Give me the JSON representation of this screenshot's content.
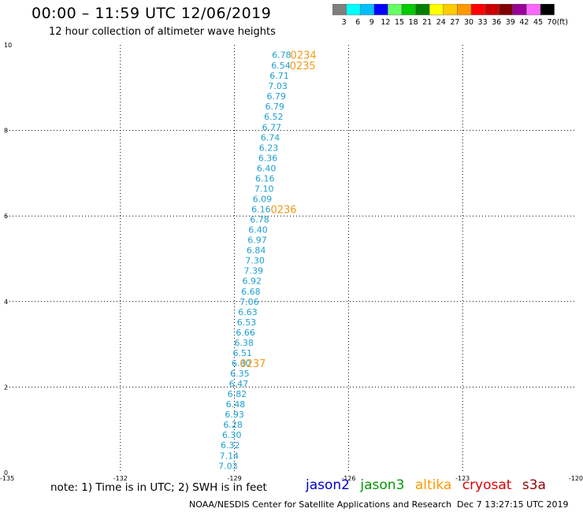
{
  "header": {
    "title": "00:00 – 11:59 UTC 12/06/2019",
    "subtitle": "12 hour collection of altimeter wave heights"
  },
  "colorbar": {
    "labels": [
      "3",
      "6",
      "9",
      "12",
      "15",
      "18",
      "21",
      "24",
      "27",
      "30",
      "33",
      "36",
      "39",
      "42",
      "45",
      "70"
    ],
    "unit": "(ft)",
    "colors": [
      "#7f7f7f",
      "#00ffff",
      "#00bfff",
      "#0000ff",
      "#66ff66",
      "#00cc00",
      "#008000",
      "#ffff00",
      "#ffcc00",
      "#ff9900",
      "#ff0000",
      "#cc0000",
      "#800000",
      "#990099",
      "#ff66ff",
      "#000000"
    ]
  },
  "chart_data": {
    "type": "scatter",
    "xlim": [
      -135,
      -120
    ],
    "ylim": [
      0,
      10
    ],
    "x_ticks": [
      "-135",
      "-132",
      "-129",
      "-126",
      "-123",
      "-120"
    ],
    "x_tick_values": [
      -135,
      -132,
      -129,
      -126,
      -123,
      -120
    ],
    "y_ticks": [
      "0",
      "2",
      "4",
      "6",
      "8",
      "10"
    ],
    "y_tick_values": [
      0,
      2,
      4,
      6,
      8,
      10
    ],
    "grid": true,
    "point_color": "#1e9fd0",
    "time_color": "#f09a18",
    "points": [
      {
        "x": -127.76,
        "y": 9.77,
        "value": "6.78"
      },
      {
        "x": -127.78,
        "y": 9.52,
        "value": "6.54"
      },
      {
        "x": -127.82,
        "y": 9.28,
        "value": "6.71"
      },
      {
        "x": -127.86,
        "y": 9.04,
        "value": "7.03"
      },
      {
        "x": -127.9,
        "y": 8.8,
        "value": "6.79"
      },
      {
        "x": -127.94,
        "y": 8.56,
        "value": "6.79"
      },
      {
        "x": -127.97,
        "y": 8.32,
        "value": "6.52"
      },
      {
        "x": -128.02,
        "y": 8.08,
        "value": "6.77"
      },
      {
        "x": -128.06,
        "y": 7.84,
        "value": "6.74"
      },
      {
        "x": -128.1,
        "y": 7.6,
        "value": "6.23"
      },
      {
        "x": -128.12,
        "y": 7.36,
        "value": "6.36"
      },
      {
        "x": -128.16,
        "y": 7.12,
        "value": "6.40"
      },
      {
        "x": -128.2,
        "y": 6.88,
        "value": "6.16"
      },
      {
        "x": -128.22,
        "y": 6.64,
        "value": "7.10"
      },
      {
        "x": -128.27,
        "y": 6.4,
        "value": "6.09"
      },
      {
        "x": -128.3,
        "y": 6.16,
        "value": "6.16"
      },
      {
        "x": -128.34,
        "y": 5.92,
        "value": "6.78"
      },
      {
        "x": -128.38,
        "y": 5.68,
        "value": "6.40"
      },
      {
        "x": -128.4,
        "y": 5.44,
        "value": "6.97"
      },
      {
        "x": -128.43,
        "y": 5.2,
        "value": "6.84"
      },
      {
        "x": -128.46,
        "y": 4.96,
        "value": "7.30"
      },
      {
        "x": -128.5,
        "y": 4.72,
        "value": "7.39"
      },
      {
        "x": -128.54,
        "y": 4.48,
        "value": "6.92"
      },
      {
        "x": -128.57,
        "y": 4.24,
        "value": "6.68"
      },
      {
        "x": -128.61,
        "y": 4.0,
        "value": "7.06"
      },
      {
        "x": -128.65,
        "y": 3.76,
        "value": "6.63"
      },
      {
        "x": -128.68,
        "y": 3.52,
        "value": "6.53"
      },
      {
        "x": -128.71,
        "y": 3.28,
        "value": "6.66"
      },
      {
        "x": -128.75,
        "y": 3.04,
        "value": "6.38"
      },
      {
        "x": -128.79,
        "y": 2.8,
        "value": "6.51"
      },
      {
        "x": -128.82,
        "y": 2.56,
        "value": "6.80"
      },
      {
        "x": -128.86,
        "y": 2.32,
        "value": "6.35"
      },
      {
        "x": -128.89,
        "y": 2.08,
        "value": "6.47"
      },
      {
        "x": -128.93,
        "y": 1.84,
        "value": "6.82"
      },
      {
        "x": -128.97,
        "y": 1.6,
        "value": "6.48"
      },
      {
        "x": -129.0,
        "y": 1.36,
        "value": "6.93"
      },
      {
        "x": -129.04,
        "y": 1.12,
        "value": "6.28"
      },
      {
        "x": -129.07,
        "y": 0.88,
        "value": "6.30"
      },
      {
        "x": -129.11,
        "y": 0.64,
        "value": "6.32"
      },
      {
        "x": -129.14,
        "y": 0.4,
        "value": "7.14"
      },
      {
        "x": -129.17,
        "y": 0.16,
        "value": "7.03"
      }
    ],
    "time_labels": [
      {
        "x": -127.53,
        "y": 9.77,
        "text": "0234"
      },
      {
        "x": -127.55,
        "y": 9.52,
        "text": "0235"
      },
      {
        "x": -128.05,
        "y": 6.16,
        "text": "0236"
      },
      {
        "x": -128.86,
        "y": 2.56,
        "text": "0237"
      }
    ]
  },
  "footer": {
    "note": "note: 1) Time is in UTC; 2) SWH is in feet",
    "satellites": [
      {
        "name": "jason2",
        "color": "#0000cc"
      },
      {
        "name": "jason3",
        "color": "#009900"
      },
      {
        "name": "altika",
        "color": "#ff9900"
      },
      {
        "name": "cryosat",
        "color": "#dd0000"
      },
      {
        "name": "s3a",
        "color": "#990000"
      }
    ],
    "credit": "NOAA/NESDIS Center for Satellite Applications and Research",
    "timestamp": "Dec  7 13:27:15 UTC 2019"
  }
}
